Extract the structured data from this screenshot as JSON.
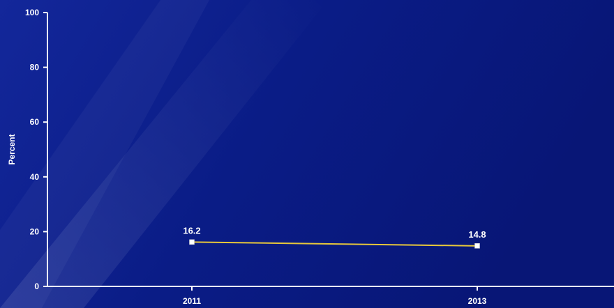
{
  "chart_data": {
    "type": "line",
    "ylabel": "Percent",
    "ylim": [
      0,
      100
    ],
    "yticks": [
      0,
      20,
      40,
      60,
      80,
      100
    ],
    "categories": [
      "2011",
      "2013"
    ],
    "series": [
      {
        "values": [
          16.2,
          14.8
        ]
      }
    ],
    "data_labels": [
      "16.2",
      "14.8"
    ],
    "grid": false,
    "legend": "none"
  },
  "colors": {
    "background": "#0a1a80",
    "axis": "#ffffff",
    "line": "#e8c83a",
    "marker": "#ffffff",
    "text": "#ffffff"
  }
}
